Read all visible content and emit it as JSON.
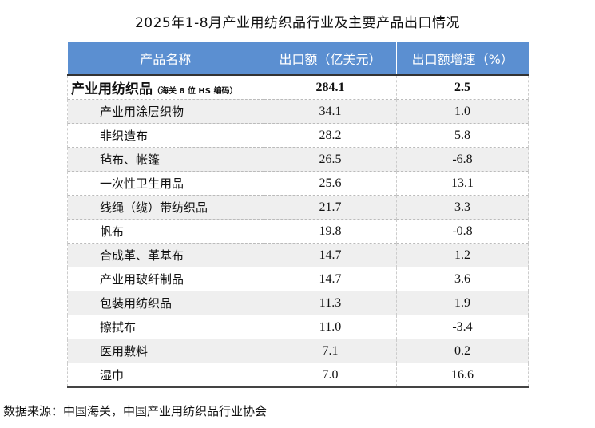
{
  "title": "2025年1-8月产业用纺织品行业及主要产品出口情况",
  "source": "数据来源：中国海关，中国产业用纺织品行业协会",
  "colors": {
    "header_bg": "#5b8fd1",
    "row_alt": "#efefef"
  },
  "chart_data": {
    "type": "table",
    "title": "2025年1-8月产业用纺织品行业及主要产品出口情况",
    "columns": [
      "产品名称",
      "出口额（亿美元）",
      "出口额增速（%）"
    ],
    "total": {
      "name": "产业用纺织品",
      "note": "（海关 8 位 HS 编码）",
      "export": "284.1",
      "growth": "2.5"
    },
    "rows": [
      {
        "name": "产业用涂层织物",
        "export": "34.1",
        "growth": "1.0"
      },
      {
        "name": "非织造布",
        "export": "28.2",
        "growth": "5.8"
      },
      {
        "name": "毡布、帐篷",
        "export": "26.5",
        "growth": "-6.8"
      },
      {
        "name": "一次性卫生用品",
        "export": "25.6",
        "growth": "13.1"
      },
      {
        "name": "线绳（缆）带纺织品",
        "export": "21.7",
        "growth": "3.3"
      },
      {
        "name": "帆布",
        "export": "19.8",
        "growth": "-0.8"
      },
      {
        "name": "合成革、革基布",
        "export": "14.7",
        "growth": "1.2"
      },
      {
        "name": "产业用玻纤制品",
        "export": "14.7",
        "growth": "3.6"
      },
      {
        "name": "包装用纺织品",
        "export": "11.3",
        "growth": "1.9"
      },
      {
        "name": "擦拭布",
        "export": "11.0",
        "growth": "-3.4"
      },
      {
        "name": "医用敷料",
        "export": "7.1",
        "growth": "0.2"
      },
      {
        "name": "湿巾",
        "export": "7.0",
        "growth": "16.6"
      }
    ]
  }
}
